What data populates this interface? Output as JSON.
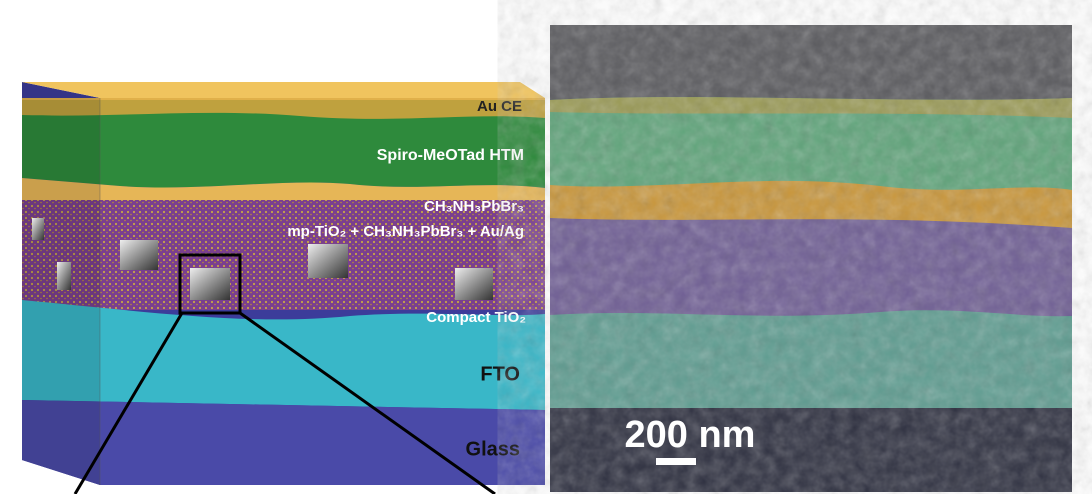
{
  "layers": [
    {
      "label": "Au CE"
    },
    {
      "label": "Spiro-MeOTad HTM"
    },
    {
      "label": "CH₃NH₃PbBr₃"
    },
    {
      "label": "mp-TiO₂ + CH₃NH₃PbBr₃ + Au/Ag"
    },
    {
      "label": "Compact TiO₂"
    },
    {
      "label": "FTO"
    },
    {
      "label": "Glass"
    }
  ],
  "scale_bar": {
    "label": "200 nm"
  }
}
